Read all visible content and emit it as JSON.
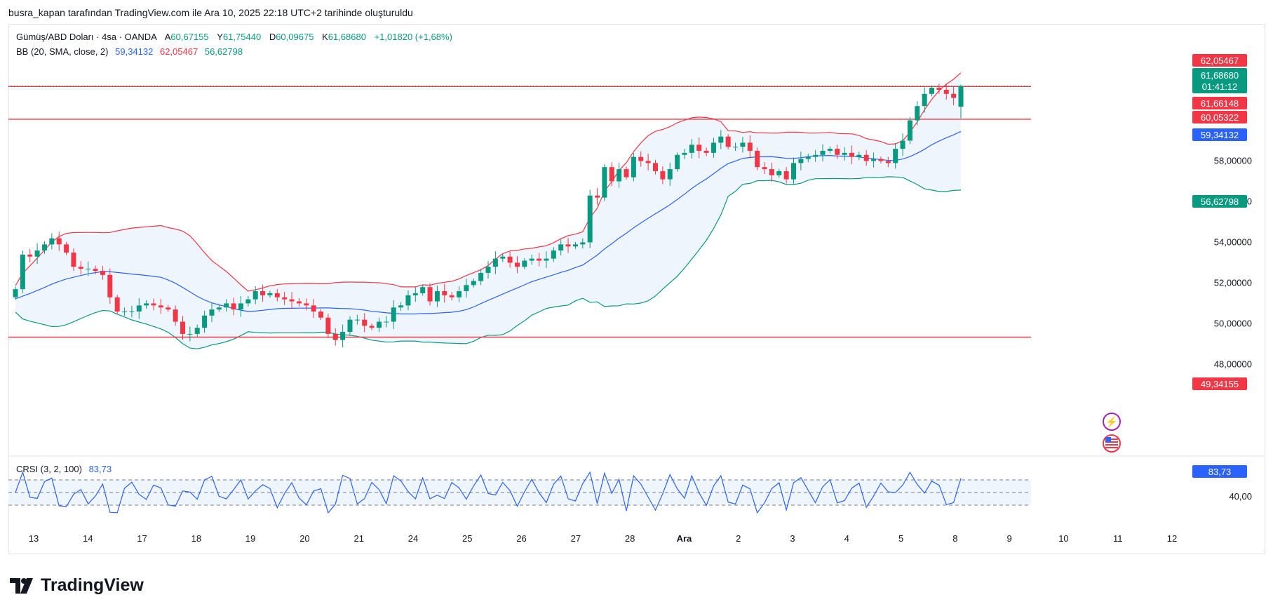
{
  "caption": "busra_kapan tarafından TradingView.com ile Ara 10, 2025 22:18 UTC+2 tarihinde oluşturuldu",
  "legend": {
    "symbol": "Gümüş/ABD Doları · 4sa · OANDA",
    "o_label": "A",
    "o_value": "60,67155",
    "h_label": "Y",
    "h_value": "61,75440",
    "l_label": "D",
    "l_value": "60,09675",
    "c_label": "K",
    "c_value": "61,68680",
    "change": "+1,01820 (+1,68%)",
    "bb_label": "BB (20, SMA, close, 2)",
    "bb_basis": "59,34132",
    "bb_upper": "62,05467",
    "bb_lower": "56,62798",
    "crsi_label": "CRSI (3, 2, 100)",
    "crsi_value": "83,73"
  },
  "price_tags": {
    "bb_upper": "62,05467",
    "last_price": "61,68680",
    "countdown": "01:41:12",
    "level_1": "61,66148",
    "level_2": "60,05322",
    "bb_basis": "59,34132",
    "bb_lower": "56,62798",
    "level_3": "49,34155",
    "crsi": "83,73"
  },
  "brand": "TradingView",
  "colors": {
    "up": "#089981",
    "down": "#f23645",
    "basis": "#2962ff",
    "upper": "#f23645",
    "lower": "#089981",
    "band_fill": "#eef5fd",
    "crsi": "#2962ff",
    "level": "#f23645"
  },
  "chart_data": {
    "type": "candlestick",
    "title": "Gümüş/ABD Doları · 4sa · OANDA",
    "y_ticks": [
      "48,00000",
      "50,00000",
      "52,00000",
      "54,00000",
      "56,00000",
      "58,00000"
    ],
    "y_tick_values": [
      48,
      50,
      52,
      54,
      56,
      58
    ],
    "ylim": [
      46.6,
      63.5
    ],
    "x_ticks": [
      "13",
      "14",
      "17",
      "18",
      "19",
      "20",
      "21",
      "24",
      "25",
      "26",
      "27",
      "28",
      "Ara",
      "2",
      "3",
      "4",
      "5",
      "8",
      "9",
      "10",
      "11",
      "12"
    ],
    "horizontal_levels": [
      61.66148,
      60.05322,
      49.34155
    ],
    "close": [
      51.7,
      53.4,
      53.3,
      53.6,
      53.9,
      54.2,
      53.9,
      53.5,
      52.8,
      52.7,
      52.7,
      52.6,
      52.4,
      51.3,
      50.6,
      50.6,
      50.6,
      50.9,
      51.0,
      50.9,
      50.8,
      50.7,
      50.1,
      49.5,
      49.5,
      49.8,
      50.4,
      50.7,
      50.8,
      51.0,
      50.7,
      51.0,
      51.2,
      51.6,
      51.4,
      51.5,
      51.3,
      51.2,
      51.1,
      51.0,
      50.9,
      50.6,
      50.3,
      49.5,
      49.2,
      49.6,
      50.2,
      50.2,
      49.9,
      49.8,
      50.1,
      50.1,
      50.8,
      50.9,
      51.4,
      51.5,
      51.8,
      51.1,
      51.6,
      51.4,
      51.3,
      51.6,
      51.9,
      52.1,
      52.5,
      52.8,
      53.2,
      53.3,
      53.0,
      52.8,
      53.1,
      53.2,
      53.1,
      53.2,
      53.6,
      53.9,
      53.8,
      53.9,
      54.0,
      56.3,
      56.2,
      57.7,
      57.0,
      57.6,
      57.2,
      58.2,
      58.0,
      57.9,
      57.5,
      57.1,
      57.6,
      58.3,
      58.4,
      58.8,
      58.5,
      58.4,
      58.9,
      59.2,
      58.7,
      58.7,
      58.9,
      58.5,
      57.7,
      57.6,
      57.3,
      57.5,
      57.1,
      57.9,
      58.1,
      58.2,
      58.3,
      58.5,
      58.6,
      58.3,
      58.4,
      58.2,
      58.3,
      58.0,
      58.1,
      58.0,
      57.9,
      58.6,
      59.0,
      60.0,
      60.7,
      61.3,
      61.6,
      61.5,
      61.3,
      61.1,
      61.69
    ]
  }
}
